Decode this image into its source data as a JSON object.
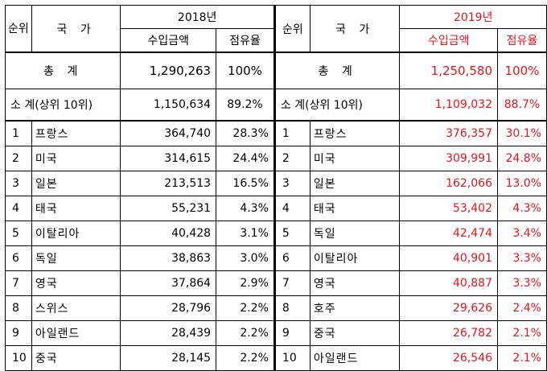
{
  "header": {
    "rank": "순위",
    "country": "국 가",
    "year_2018": "2018년",
    "year_2019": "2019년",
    "amount": "수입금액",
    "share": "점유율"
  },
  "total": {
    "label": "총 계",
    "amount_2018": "1,290,263",
    "share_2018": "100%",
    "amount_2019": "1,250,580",
    "share_2019": "100%"
  },
  "subtotal": {
    "label": "소 계(상위 10위)",
    "amount_2018": "1,150,634",
    "share_2018": "89.2%",
    "amount_2019": "1,109,032",
    "share_2019": "88.7%"
  },
  "rows_2018": [
    {
      "rank": "1",
      "country": "프랑스",
      "amount": "364,740",
      "share": "28.3%"
    },
    {
      "rank": "2",
      "country": "미국",
      "amount": "314,615",
      "share": "24.4%"
    },
    {
      "rank": "3",
      "country": "일본",
      "amount": "213,513",
      "share": "16.5%"
    },
    {
      "rank": "4",
      "country": "태국",
      "amount": "55,231",
      "share": "4.3%"
    },
    {
      "rank": "5",
      "country": "이탈리아",
      "amount": "40,428",
      "share": "3.1%"
    },
    {
      "rank": "6",
      "country": "독일",
      "amount": "38,863",
      "share": "3.0%"
    },
    {
      "rank": "7",
      "country": "영국",
      "amount": "37,864",
      "share": "2.9%"
    },
    {
      "rank": "8",
      "country": "스위스",
      "amount": "28,796",
      "share": "2.2%"
    },
    {
      "rank": "9",
      "country": "아일랜드",
      "amount": "28,439",
      "share": "2.2%"
    },
    {
      "rank": "10",
      "country": "중국",
      "amount": "28,145",
      "share": "2.2%"
    }
  ],
  "rows_2019": [
    {
      "rank": "1",
      "country": "프랑스",
      "amount": "376,357",
      "share": "30.1%"
    },
    {
      "rank": "2",
      "country": "미국",
      "amount": "309,991",
      "share": "24.8%"
    },
    {
      "rank": "3",
      "country": "일본",
      "amount": "162,066",
      "share": "13.0%"
    },
    {
      "rank": "4",
      "country": "태국",
      "amount": "53,402",
      "share": "4.3%"
    },
    {
      "rank": "5",
      "country": "독일",
      "amount": "42,474",
      "share": "3.4%"
    },
    {
      "rank": "6",
      "country": "이탈리아",
      "amount": "40,901",
      "share": "3.3%"
    },
    {
      "rank": "7",
      "country": "영국",
      "amount": "40,887",
      "share": "3.3%"
    },
    {
      "rank": "8",
      "country": "호주",
      "amount": "29,626",
      "share": "2.4%"
    },
    {
      "rank": "9",
      "country": "중국",
      "amount": "26,782",
      "share": "2.1%"
    },
    {
      "rank": "10",
      "country": "아일랜드",
      "amount": "26,546",
      "share": "2.1%"
    }
  ],
  "colors": {
    "red": "#e5141c",
    "border": "#000000"
  }
}
